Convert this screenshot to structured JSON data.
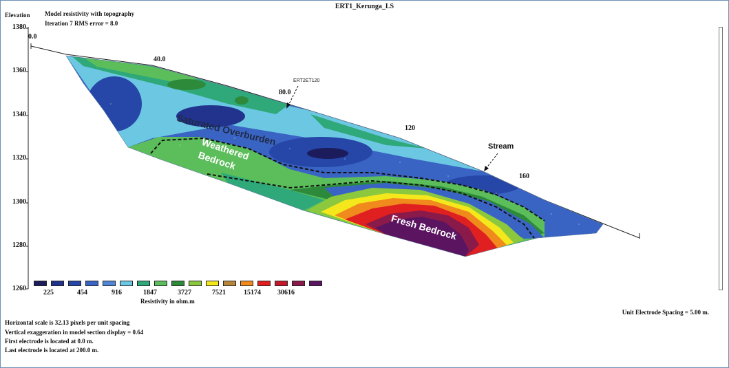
{
  "header": {
    "title": "ERT1_Kerunga_LS",
    "model_title": "Model resistivity with topography",
    "iteration_line": "Iteration 7 RMS error = 8.0"
  },
  "axes": {
    "y_title": "Elevation",
    "y_ticks": [
      "1380",
      "1360",
      "1340",
      "1320",
      "1300",
      "1280",
      "1260"
    ],
    "x_ticks": [
      "0.0",
      "40.0",
      "80.0",
      "120",
      "160"
    ]
  },
  "annotations": {
    "saturated": "Saturated Overburden",
    "weathered_1": "Weathered",
    "weathered_2": "Bedrock",
    "fresh": "Fresh Bedrock",
    "stream": "Stream",
    "ert_marker": "ERT2ET120"
  },
  "legend": {
    "colors": [
      "#1c1c5c",
      "#22338e",
      "#2646a8",
      "#3a64c4",
      "#4f86d6",
      "#6cc8e2",
      "#2fa87a",
      "#5bbe5a",
      "#2e8a3b",
      "#8cc83e",
      "#f4e81c",
      "#b8863a",
      "#f08a1c",
      "#e02020",
      "#c4182a",
      "#8a1a4a",
      "#5a1460"
    ],
    "values": [
      "225",
      "454",
      "916",
      "1847",
      "3727",
      "7521",
      "15174",
      "30616"
    ],
    "units": "Resistivity in ohm.m"
  },
  "footer": {
    "scale": "Horizontal scale is 32.13 pixels per unit spacing",
    "vexag": "Vertical exaggeration in model section display = 0.64",
    "first_electrode": "First electrode is located at 0.0  m.",
    "last_electrode": "Last electrode is located at 200.0 m.",
    "spacing": "Unit Electrode Spacing = 5.00 m."
  },
  "chart_data": {
    "type": "heatmap",
    "title": "ERT1_Kerunga_LS",
    "ylabel": "Elevation",
    "ylim": [
      1260,
      1380
    ],
    "xlim": [
      0,
      200
    ],
    "x_ticks": [
      0,
      40,
      80,
      120,
      160
    ],
    "y_ticks": [
      1380,
      1360,
      1340,
      1320,
      1300,
      1280,
      1260
    ],
    "colorbar_label": "Resistivity in ohm.m",
    "colorbar_values": [
      225,
      454,
      916,
      1847,
      3727,
      7521,
      15174,
      30616
    ],
    "zones": [
      "Saturated Overburden",
      "Weathered Bedrock",
      "Fresh Bedrock"
    ]
  }
}
